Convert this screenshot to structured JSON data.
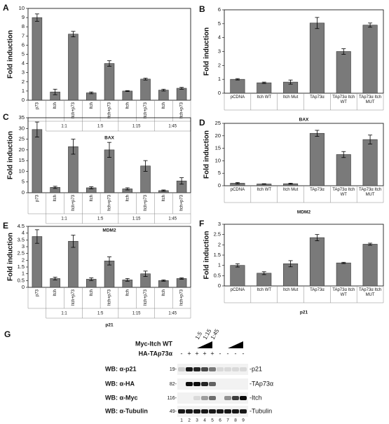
{
  "chart_data": [
    {
      "type": "bar",
      "panel": "A",
      "ylabel": "Fold induction",
      "xlabel": "BAX",
      "categories": [
        "p73",
        "Itch",
        "Itch+p73",
        "Itch",
        "Itch+p73",
        "Itch",
        "Itch+p73",
        "Itch",
        "Itch+p73"
      ],
      "groups": [
        "1:1",
        "1:5",
        "1:15",
        "1:45"
      ],
      "values": [
        9.0,
        0.9,
        7.2,
        0.8,
        4.0,
        1.0,
        2.3,
        1.1,
        1.3
      ],
      "errors": [
        0.4,
        0.3,
        0.3,
        0.1,
        0.3,
        0.05,
        0.1,
        0.1,
        0.1
      ],
      "color": "#7a7a7a",
      "ylim": [
        0,
        10
      ],
      "yticks": [
        0,
        1,
        2,
        3,
        4,
        5,
        6,
        7,
        8,
        9,
        10
      ]
    },
    {
      "type": "bar",
      "panel": "B",
      "ylabel": "Fold induction",
      "xlabel": "BAX",
      "categories": [
        "pCDNA",
        "Itch WT",
        "Itch Mut",
        "TAp73α",
        "TAp73α Itch WT",
        "TAp73α Itch MUT"
      ],
      "values": [
        1.0,
        0.75,
        0.8,
        5.05,
        3.0,
        4.9
      ],
      "errors": [
        0.05,
        0.05,
        0.15,
        0.4,
        0.2,
        0.15
      ],
      "color": "#7a7a7a",
      "ylim": [
        0,
        6
      ],
      "yticks": [
        0,
        1,
        2,
        3,
        4,
        5,
        6
      ]
    },
    {
      "type": "bar",
      "panel": "C",
      "ylabel": "Fold induction",
      "xlabel": "MDM2",
      "categories": [
        "p73",
        "Itch",
        "Itch+p73",
        "Itch",
        "Itch+p73",
        "Itch",
        "Itch+p73",
        "Itch",
        "Itch+p73"
      ],
      "groups": [
        "1:1",
        "1:5",
        "1:15",
        "1:45"
      ],
      "values": [
        29.5,
        2.5,
        21.5,
        2.3,
        20,
        1.8,
        12.5,
        1.0,
        5.5
      ],
      "errors": [
        3.5,
        0.5,
        3.5,
        0.5,
        3.5,
        0.5,
        2.5,
        0.3,
        1.5
      ],
      "color": "#7a7a7a",
      "ylim": [
        0,
        35
      ],
      "yticks": [
        0,
        5,
        10,
        15,
        20,
        25,
        30,
        35
      ]
    },
    {
      "type": "bar",
      "panel": "D",
      "ylabel": "Fold induction",
      "xlabel": "MDM2",
      "categories": [
        "pCDNA",
        "Itch WT",
        "Itch Mut",
        "TAp73α",
        "TAp73α Itch WT",
        "TAp73α Itch MUT"
      ],
      "values": [
        1.0,
        0.7,
        0.8,
        21,
        12.5,
        18.5
      ],
      "errors": [
        0.3,
        0.1,
        0.2,
        1.2,
        1.2,
        1.8
      ],
      "color": "#7a7a7a",
      "ylim": [
        0,
        25
      ],
      "yticks": [
        0,
        5,
        10,
        15,
        20,
        25
      ]
    },
    {
      "type": "bar",
      "panel": "E",
      "ylabel": "Fold induction",
      "xlabel": "p21",
      "categories": [
        "p73",
        "Itch",
        "Itch+p73",
        "Itch",
        "Itch+p73",
        "Itch",
        "Itch+p73",
        "Itch",
        "Itch+p73"
      ],
      "groups": [
        "1:1",
        "1:5",
        "1:15",
        "1:45"
      ],
      "values": [
        3.75,
        0.65,
        3.4,
        0.6,
        1.95,
        0.55,
        1.0,
        0.5,
        0.65
      ],
      "errors": [
        0.5,
        0.1,
        0.45,
        0.1,
        0.3,
        0.1,
        0.2,
        0.05,
        0.05
      ],
      "color": "#7a7a7a",
      "ylim": [
        0,
        4.5
      ],
      "yticks": [
        0,
        0.5,
        1,
        1.5,
        2,
        2.5,
        3,
        3.5,
        4,
        4.5
      ]
    },
    {
      "type": "bar",
      "panel": "F",
      "ylabel": "Fold induction",
      "xlabel": "p21",
      "categories": [
        "pCDNA",
        "Itch WT",
        "Itch Mut",
        "TAp73α",
        "TAp73α Itch WT",
        "TAp73α Itch MUT"
      ],
      "values": [
        1.0,
        0.62,
        1.08,
        2.35,
        1.12,
        2.03
      ],
      "errors": [
        0.08,
        0.07,
        0.15,
        0.15,
        0.03,
        0.05
      ],
      "color": "#7a7a7a",
      "ylim": [
        0,
        3
      ],
      "yticks": [
        0,
        0.5,
        1,
        1.5,
        2,
        2.5,
        3
      ]
    }
  ],
  "blot": {
    "panel": "G",
    "titrant": "Myc-Itch WT",
    "titration": [
      "1:5",
      "1:15",
      "1:45"
    ],
    "reagent": "HA-TAp73α",
    "signs": [
      "-",
      "+",
      "+",
      "+",
      "+",
      "-",
      "-",
      "-",
      "-"
    ],
    "rows": [
      {
        "label": "WB: α-p21",
        "marker": "19-",
        "band": "-p21"
      },
      {
        "label": "WB: α-HA",
        "marker": "82-",
        "band": "-TAp73α"
      },
      {
        "label": "WB: α-Myc",
        "marker": "116-",
        "band": "-Itch"
      },
      {
        "label": "WB: α-Tubulin",
        "marker": "49-",
        "band": "-Tubulin"
      }
    ],
    "lanes": [
      1,
      2,
      3,
      4,
      5,
      6,
      7,
      8,
      9
    ]
  }
}
